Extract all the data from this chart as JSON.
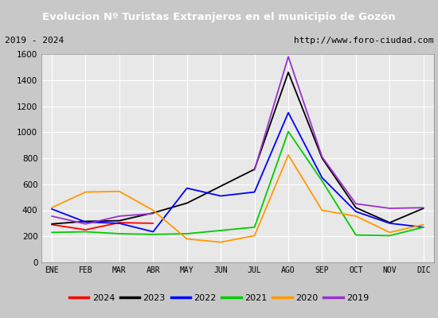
{
  "title": "Evolucion Nº Turistas Extranjeros en el municipio de Gozón",
  "subtitle_left": "2019 - 2024",
  "subtitle_right": "http://www.foro-ciudad.com",
  "title_bg_color": "#4a90d9",
  "title_text_color": "#ffffff",
  "months": [
    "ENE",
    "FEB",
    "MAR",
    "ABR",
    "MAY",
    "JUN",
    "JUL",
    "AGO",
    "SEP",
    "OCT",
    "NOV",
    "DIC"
  ],
  "ylim": [
    0,
    1600
  ],
  "yticks": [
    0,
    200,
    400,
    600,
    800,
    1000,
    1200,
    1400,
    1600
  ],
  "series": {
    "2024": {
      "color": "#ff0000",
      "data": [
        290,
        250,
        305,
        300,
        null,
        null,
        null,
        null,
        null,
        null,
        null,
        null
      ]
    },
    "2023": {
      "color": "#000000",
      "data": [
        295,
        315,
        320,
        380,
        455,
        585,
        715,
        1460,
        800,
        420,
        305,
        415
      ]
    },
    "2022": {
      "color": "#0000ff",
      "data": [
        410,
        310,
        300,
        235,
        570,
        510,
        540,
        1150,
        650,
        390,
        300,
        270
      ]
    },
    "2021": {
      "color": "#00cc00",
      "data": [
        230,
        235,
        220,
        215,
        220,
        245,
        270,
        1005,
        625,
        210,
        205,
        270
      ]
    },
    "2020": {
      "color": "#ff9900",
      "data": [
        420,
        540,
        545,
        400,
        180,
        155,
        205,
        825,
        400,
        355,
        230,
        290
      ]
    },
    "2019": {
      "color": "#9b30d0",
      "data": [
        355,
        295,
        355,
        375,
        null,
        null,
        710,
        1580,
        810,
        450,
        415,
        420
      ]
    }
  },
  "legend_order": [
    "2024",
    "2023",
    "2022",
    "2021",
    "2020",
    "2019"
  ],
  "plot_bg_color": "#e8e8e8",
  "grid_color": "#ffffff",
  "outer_bg_color": "#d0d0d0",
  "subtitle_bg_color": "#d8d8d8"
}
